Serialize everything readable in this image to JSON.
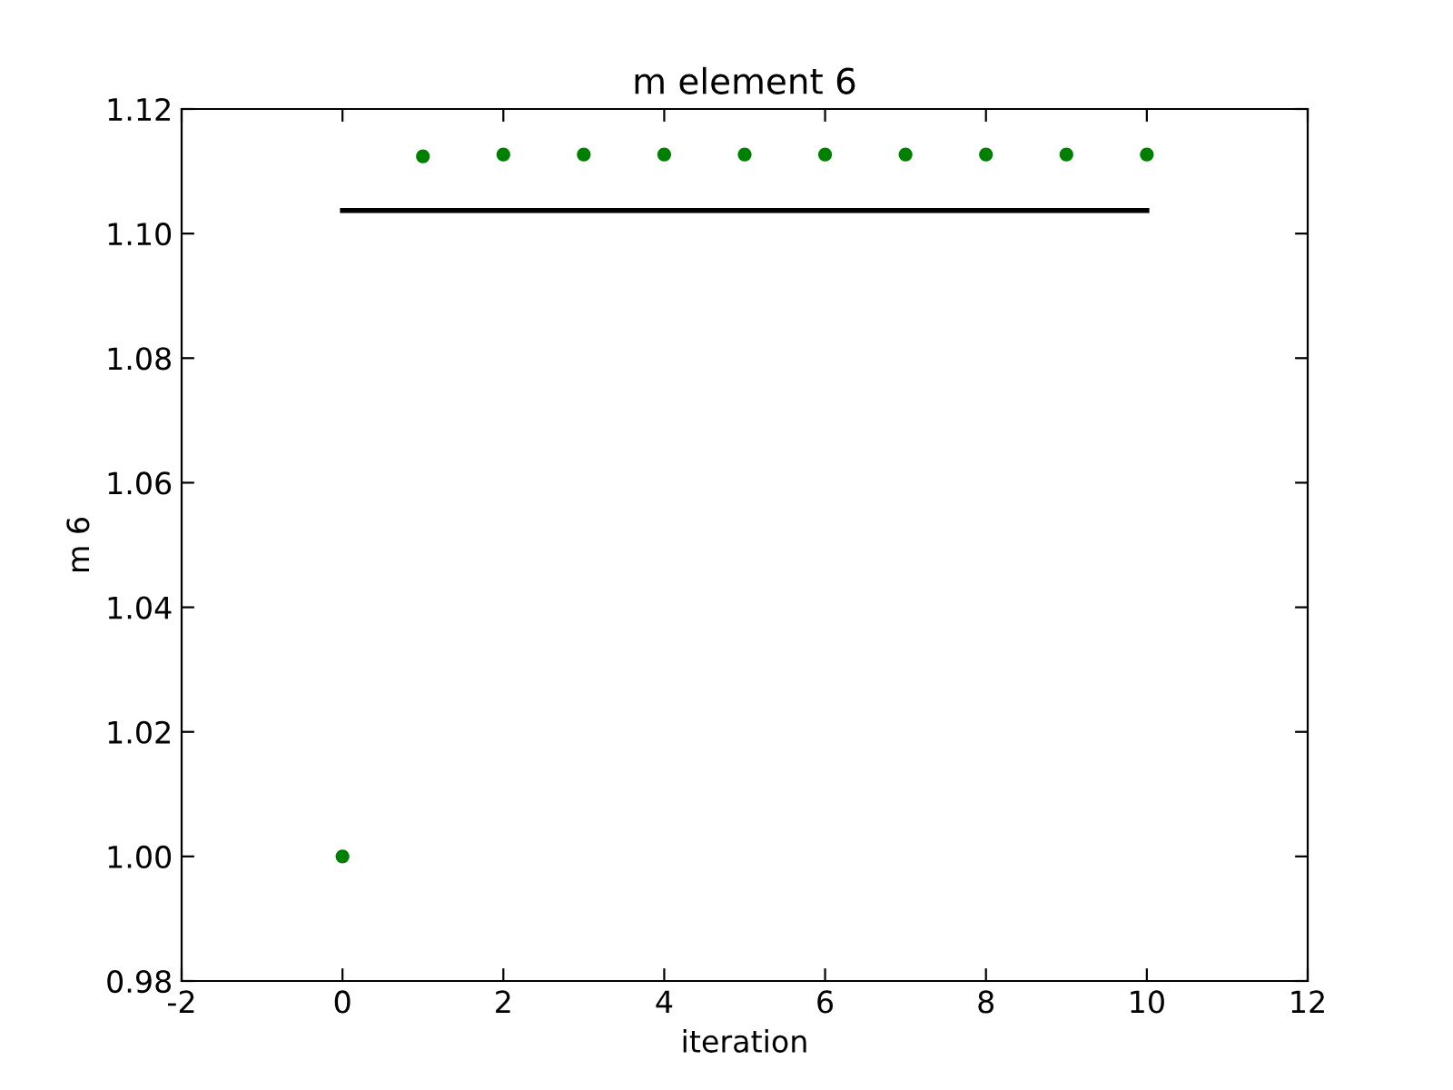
{
  "chart_data": {
    "type": "scatter",
    "title": "m element 6",
    "xlabel": "iteration",
    "ylabel": "m 6",
    "series": [
      {
        "type": "line",
        "color": "#000000",
        "x": [
          0,
          10
        ],
        "values": [
          1.1037,
          1.1037
        ],
        "marker": "none"
      },
      {
        "color": "#008000",
        "x": [
          0,
          1,
          2,
          3,
          4,
          5,
          6,
          7,
          8,
          9,
          10
        ],
        "values": [
          1.0,
          1.1124,
          1.1127,
          1.1127,
          1.1127,
          1.1127,
          1.1127,
          1.1127,
          1.1127,
          1.1127,
          1.1127
        ],
        "marker": "circle"
      }
    ],
    "xlim": [
      -2,
      12
    ],
    "xticks": [
      -2,
      0,
      2,
      4,
      6,
      8,
      10,
      12
    ],
    "ylim": [
      0.98,
      1.12
    ],
    "yticks": [
      {
        "value": 0.98,
        "label": "0.98"
      },
      {
        "value": 1.0,
        "label": "1.00"
      },
      {
        "value": 1.02,
        "label": "1.02"
      },
      {
        "value": 1.04,
        "label": "1.04"
      },
      {
        "value": 1.06,
        "label": "1.06"
      },
      {
        "value": 1.08,
        "label": "1.08"
      },
      {
        "value": 1.1,
        "label": "1.10"
      },
      {
        "value": 1.12,
        "label": "1.12"
      }
    ],
    "grid": false
  }
}
